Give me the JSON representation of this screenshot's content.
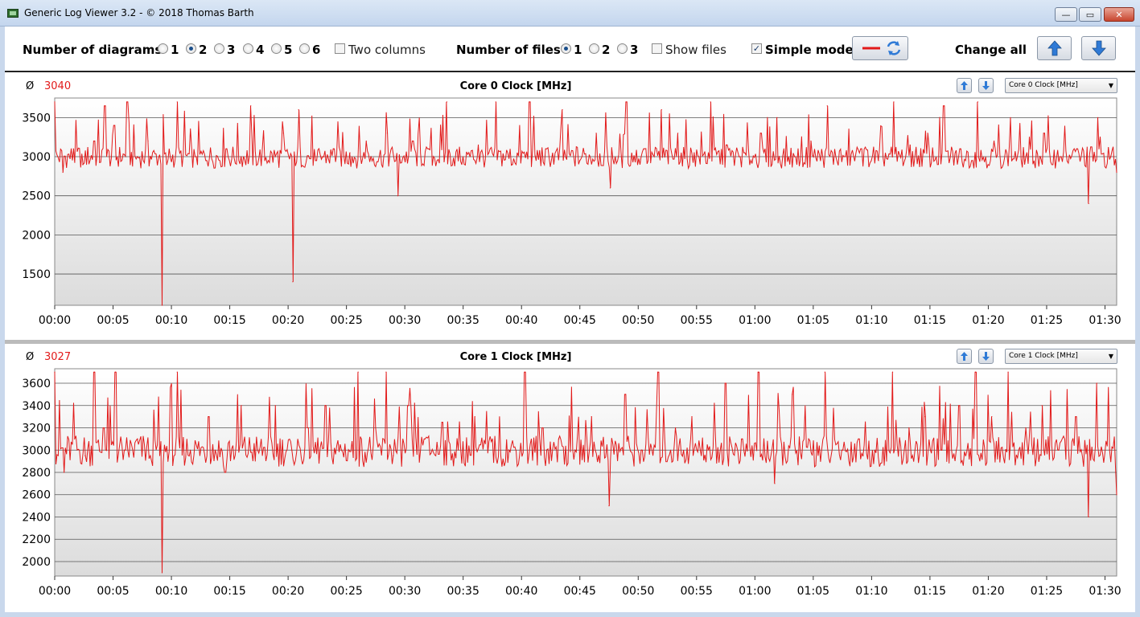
{
  "window": {
    "title": "Generic Log Viewer 3.2 - © 2018 Thomas Barth",
    "close_glyph": "✕",
    "max_glyph": "▭",
    "min_glyph": "—"
  },
  "toolbar": {
    "diagrams_label": "Number of diagrams",
    "diagram_options": [
      "1",
      "2",
      "3",
      "4",
      "5",
      "6"
    ],
    "diagrams_selected": "2",
    "two_columns_label": "Two columns",
    "two_columns_checked": false,
    "files_label": "Number of files",
    "file_options": [
      "1",
      "2",
      "3"
    ],
    "files_selected": "1",
    "show_files_label": "Show files",
    "show_files_checked": false,
    "simple_mode_label": "Simple mode",
    "simple_mode_checked": true,
    "change_all_label": "Change all",
    "accent_red": "#e21a1a",
    "accent_blue": "#2f7ad6"
  },
  "panels": [
    {
      "avg_symbol": "Ø",
      "avg_value": "3040",
      "title": "Core 0 Clock [MHz]",
      "selector_value": "Core 0 Clock [MHz]"
    },
    {
      "avg_symbol": "Ø",
      "avg_value": "3027",
      "title": "Core 1 Clock [MHz]",
      "selector_value": "Core 1 Clock [MHz]"
    }
  ],
  "chart_data": [
    {
      "type": "line",
      "title": "Core 0 Clock [MHz]",
      "xlabel": "",
      "ylabel": "",
      "ylim": [
        1100,
        3750
      ],
      "yticks": [
        1500,
        2000,
        2500,
        3000,
        3500
      ],
      "xlim_minutes": [
        0,
        91
      ],
      "xticks": [
        "00:00",
        "00:05",
        "00:10",
        "00:15",
        "00:20",
        "00:25",
        "00:30",
        "00:35",
        "00:40",
        "00:45",
        "00:50",
        "00:55",
        "01:00",
        "01:05",
        "01:10",
        "01:15",
        "01:20",
        "01:25",
        "01:30"
      ],
      "grid": true,
      "line_color": "#e21a1a",
      "series": [
        {
          "base": 3000,
          "x": [
            0,
            0.7,
            1.6,
            2.4,
            3.4,
            4.3,
            5.1,
            6.2,
            7.1,
            8.0,
            9.2,
            9.6,
            10.5,
            12.1,
            13.0,
            14.7,
            16.8,
            18.3,
            19.6,
            20.4,
            20.9,
            22.4,
            23.9,
            25.3,
            26.7,
            28.5,
            29.4,
            30.7,
            32.0,
            33.6,
            35.0,
            36.3,
            37.8,
            39.2,
            40.7,
            42.1,
            43.5,
            45.0,
            46.4,
            47.6,
            49.0,
            50.5,
            52.0,
            53.4,
            54.8,
            56.2,
            57.6,
            59.1,
            60.5,
            61.9,
            63.4,
            64.8,
            66.2,
            67.7,
            69.1,
            70.6,
            71.9,
            73.3,
            74.8,
            76.2,
            77.6,
            79.1,
            80.5,
            81.9,
            83.3,
            84.8,
            86.2,
            87.6,
            88.6,
            89.4,
            90.5,
            91
          ],
          "y": [
            3700,
            2800,
            3100,
            2900,
            3200,
            3650,
            3400,
            3700,
            3000,
            3200,
            1100,
            2900,
            3700,
            3000,
            2950,
            3100,
            3650,
            2950,
            3300,
            1400,
            3600,
            2950,
            3100,
            3050,
            3200,
            3300,
            2500,
            3200,
            3100,
            3700,
            3000,
            3150,
            3700,
            2900,
            3700,
            3100,
            3600,
            2950,
            3300,
            2600,
            3700,
            3100,
            3600,
            3300,
            3050,
            3700,
            3150,
            3050,
            3300,
            3500,
            3000,
            3200,
            3650,
            3000,
            3100,
            2950,
            3700,
            3150,
            3300,
            3650,
            3100,
            3700,
            3200,
            3500,
            3050,
            3300,
            3000,
            3100,
            2400,
            3500,
            3000,
            2800
          ]
        }
      ]
    },
    {
      "type": "line",
      "title": "Core 1 Clock [MHz]",
      "xlabel": "",
      "ylabel": "",
      "ylim": [
        1870,
        3730
      ],
      "yticks": [
        2000,
        2200,
        2400,
        2600,
        2800,
        3000,
        3200,
        3400,
        3600
      ],
      "xlim_minutes": [
        0,
        91
      ],
      "xticks": [
        "00:00",
        "00:05",
        "00:10",
        "00:15",
        "00:20",
        "00:25",
        "00:30",
        "00:35",
        "00:40",
        "00:45",
        "00:50",
        "00:55",
        "01:00",
        "01:05",
        "01:10",
        "01:15",
        "01:20",
        "01:25",
        "01:30"
      ],
      "grid": true,
      "line_color": "#e21a1a",
      "series": [
        {
          "base": 3000,
          "x": [
            0,
            0.8,
            1.7,
            2.6,
            3.4,
            4.2,
            5.2,
            6.0,
            7.1,
            8.2,
            9.2,
            9.7,
            10.5,
            11.6,
            13.2,
            14.6,
            16.0,
            17.4,
            18.9,
            20.3,
            21.7,
            23.2,
            24.6,
            26.0,
            27.5,
            28.4,
            29.0,
            30.3,
            31.7,
            33.2,
            34.6,
            36.0,
            37.5,
            38.9,
            40.3,
            41.8,
            43.2,
            44.6,
            46.0,
            47.5,
            48.9,
            50.3,
            51.7,
            53.2,
            54.6,
            56.0,
            57.5,
            58.9,
            60.3,
            61.7,
            63.2,
            64.6,
            66.0,
            67.5,
            68.9,
            70.3,
            71.8,
            73.2,
            74.6,
            76.0,
            77.5,
            78.9,
            80.3,
            81.7,
            83.2,
            84.6,
            86.0,
            87.5,
            88.6,
            89.3,
            90.4,
            91
          ],
          "y": [
            3700,
            2800,
            3100,
            2950,
            3700,
            3200,
            3700,
            3000,
            3100,
            2950,
            1900,
            2900,
            3700,
            3000,
            3300,
            2800,
            3400,
            3000,
            3400,
            3000,
            3200,
            3400,
            3000,
            3700,
            3200,
            3700,
            2950,
            3400,
            3100,
            3250,
            3000,
            3300,
            3100,
            3000,
            3700,
            3200,
            3100,
            3000,
            3300,
            2500,
            3500,
            3000,
            3700,
            3200,
            3300,
            3000,
            3600,
            3100,
            3700,
            2700,
            3500,
            3100,
            3700,
            3000,
            3100,
            3000,
            3700,
            3200,
            3300,
            3000,
            3400,
            3700,
            3300,
            3700,
            3200,
            3400,
            3000,
            3300,
            2400,
            3600,
            3000,
            2600
          ]
        }
      ]
    }
  ]
}
